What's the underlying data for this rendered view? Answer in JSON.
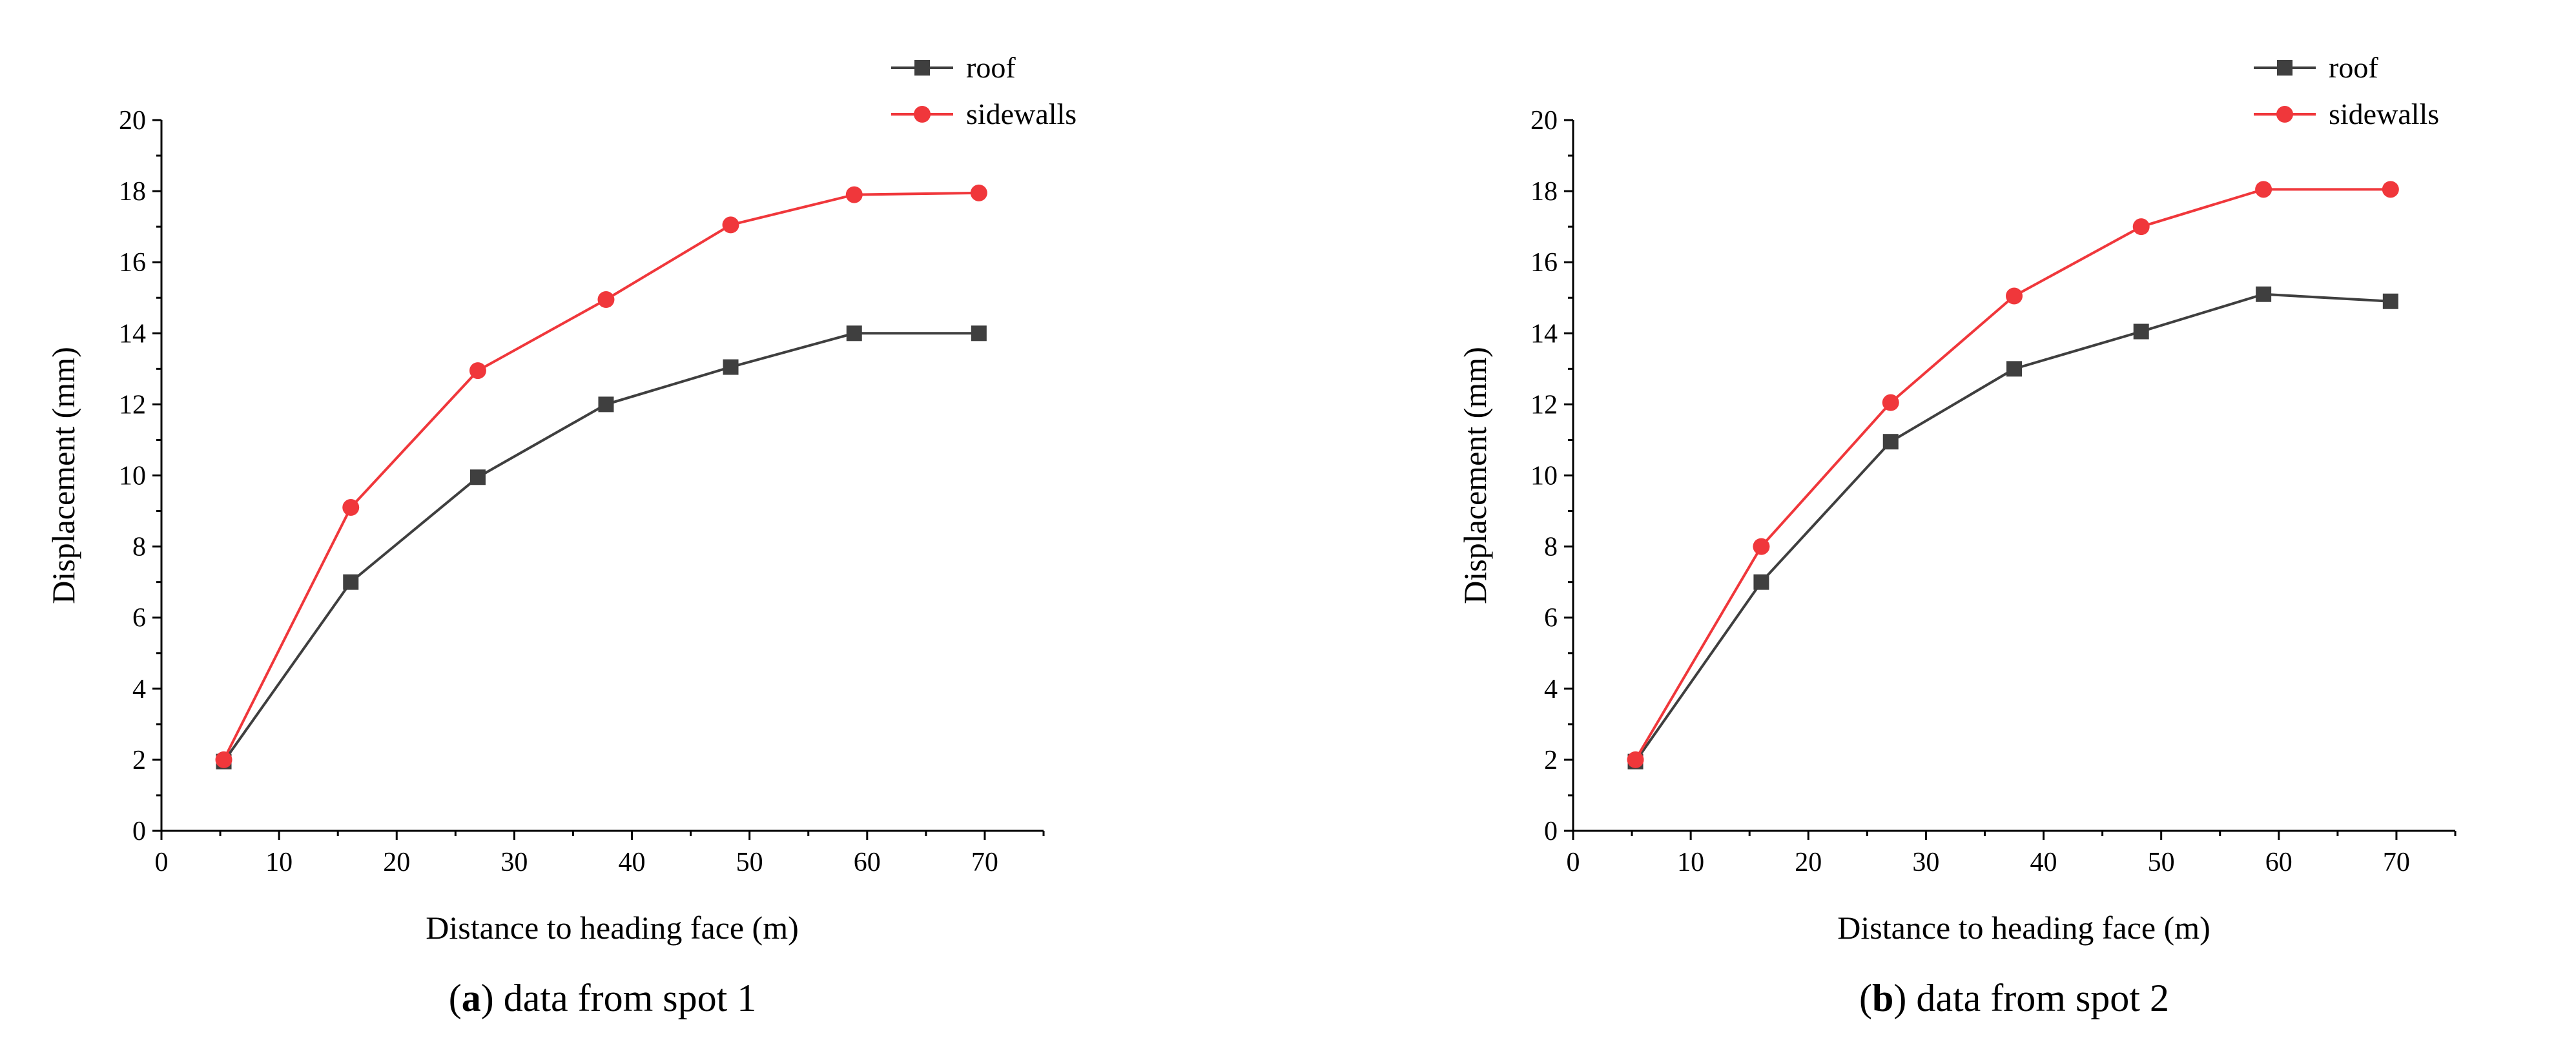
{
  "chart_data": [
    {
      "type": "line",
      "caption_letter": "a",
      "caption_rest": "data from spot 1",
      "xlabel": "Distance to heading face (m)",
      "ylabel": "Displacement (mm)",
      "xlim": [
        0,
        75
      ],
      "ylim": [
        0,
        20
      ],
      "xticks": [
        0,
        10,
        20,
        30,
        40,
        50,
        60,
        70
      ],
      "yticks": [
        0,
        2,
        4,
        6,
        8,
        10,
        12,
        14,
        16,
        18,
        20
      ],
      "grid": false,
      "legend_position": "top-right",
      "x": [
        5.3,
        16.1,
        26.9,
        37.8,
        48.4,
        58.9,
        69.5
      ],
      "series": [
        {
          "name": "roof",
          "values": [
            1.95,
            7.0,
            9.95,
            12.0,
            13.05,
            14.0,
            14.0
          ],
          "color": "#3f3f3f",
          "marker": "square"
        },
        {
          "name": "sidewalls",
          "values": [
            2.0,
            9.1,
            12.95,
            14.95,
            17.05,
            17.9,
            17.95
          ],
          "color": "#f0373b",
          "marker": "circle"
        }
      ]
    },
    {
      "type": "line",
      "caption_letter": "b",
      "caption_rest": "data from spot 2",
      "xlabel": "Distance to heading face (m)",
      "ylabel": "Displacement (mm)",
      "xlim": [
        0,
        75
      ],
      "ylim": [
        0,
        20
      ],
      "xticks": [
        0,
        10,
        20,
        30,
        40,
        50,
        60,
        70
      ],
      "yticks": [
        0,
        2,
        4,
        6,
        8,
        10,
        12,
        14,
        16,
        18,
        20
      ],
      "grid": false,
      "legend_position": "top-right",
      "x": [
        5.3,
        16.0,
        27.0,
        37.5,
        48.3,
        58.7,
        69.5
      ],
      "series": [
        {
          "name": "roof",
          "values": [
            1.95,
            7.0,
            10.95,
            13.0,
            14.05,
            15.1,
            14.9
          ],
          "color": "#3f3f3f",
          "marker": "square"
        },
        {
          "name": "sidewalls",
          "values": [
            2.0,
            8.0,
            12.05,
            15.05,
            17.0,
            18.05,
            18.05
          ],
          "color": "#f0373b",
          "marker": "circle"
        }
      ]
    }
  ]
}
